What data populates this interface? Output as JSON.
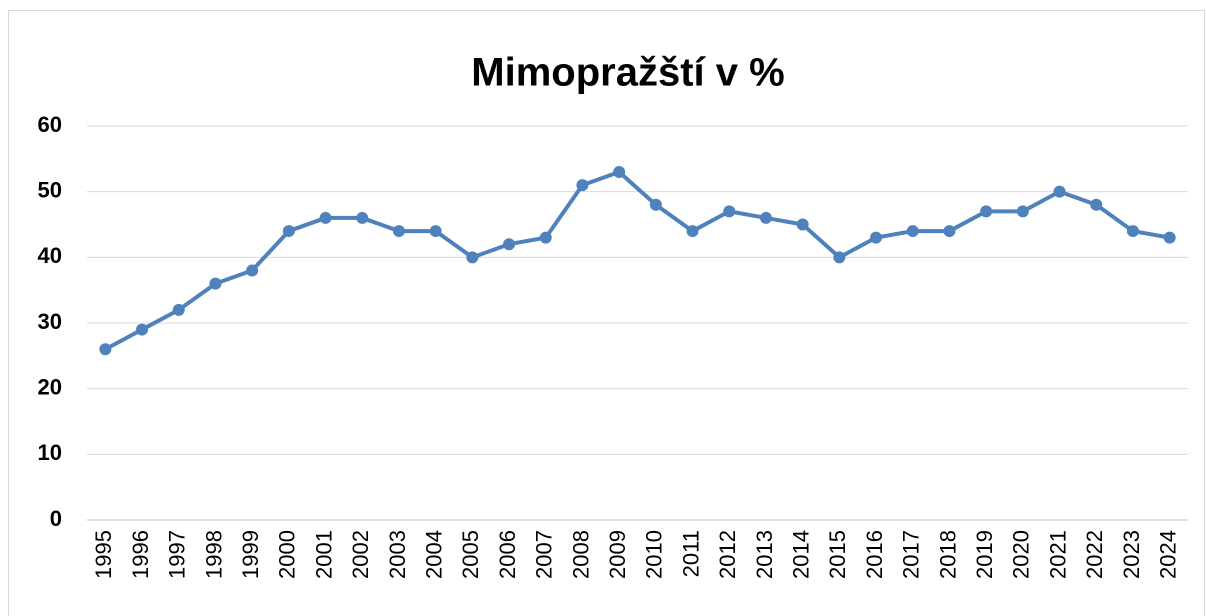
{
  "chart_data": {
    "type": "line",
    "title": "Mimopražští v %",
    "categories": [
      "1995",
      "1996",
      "1997",
      "1998",
      "1999",
      "2000",
      "2001",
      "2002",
      "2003",
      "2004",
      "2005",
      "2006",
      "2007",
      "2008",
      "2009",
      "2010",
      "2011",
      "2012",
      "2013",
      "2014",
      "2015",
      "2016",
      "2017",
      "2018",
      "2019",
      "2020",
      "2021",
      "2022",
      "2023",
      "2024"
    ],
    "series": [
      {
        "name": "Mimopražští v %",
        "color": "#4f81bd",
        "values": [
          26,
          29,
          32,
          36,
          38,
          44,
          46,
          46,
          44,
          44,
          40,
          42,
          43,
          51,
          53,
          48,
          44,
          47,
          46,
          45,
          40,
          43,
          44,
          44,
          47,
          47,
          50,
          48,
          44,
          43
        ]
      }
    ],
    "ylim": [
      0,
      60
    ],
    "yticks": [
      0,
      10,
      20,
      30,
      40,
      50,
      60
    ],
    "grid": true,
    "legend": false
  }
}
